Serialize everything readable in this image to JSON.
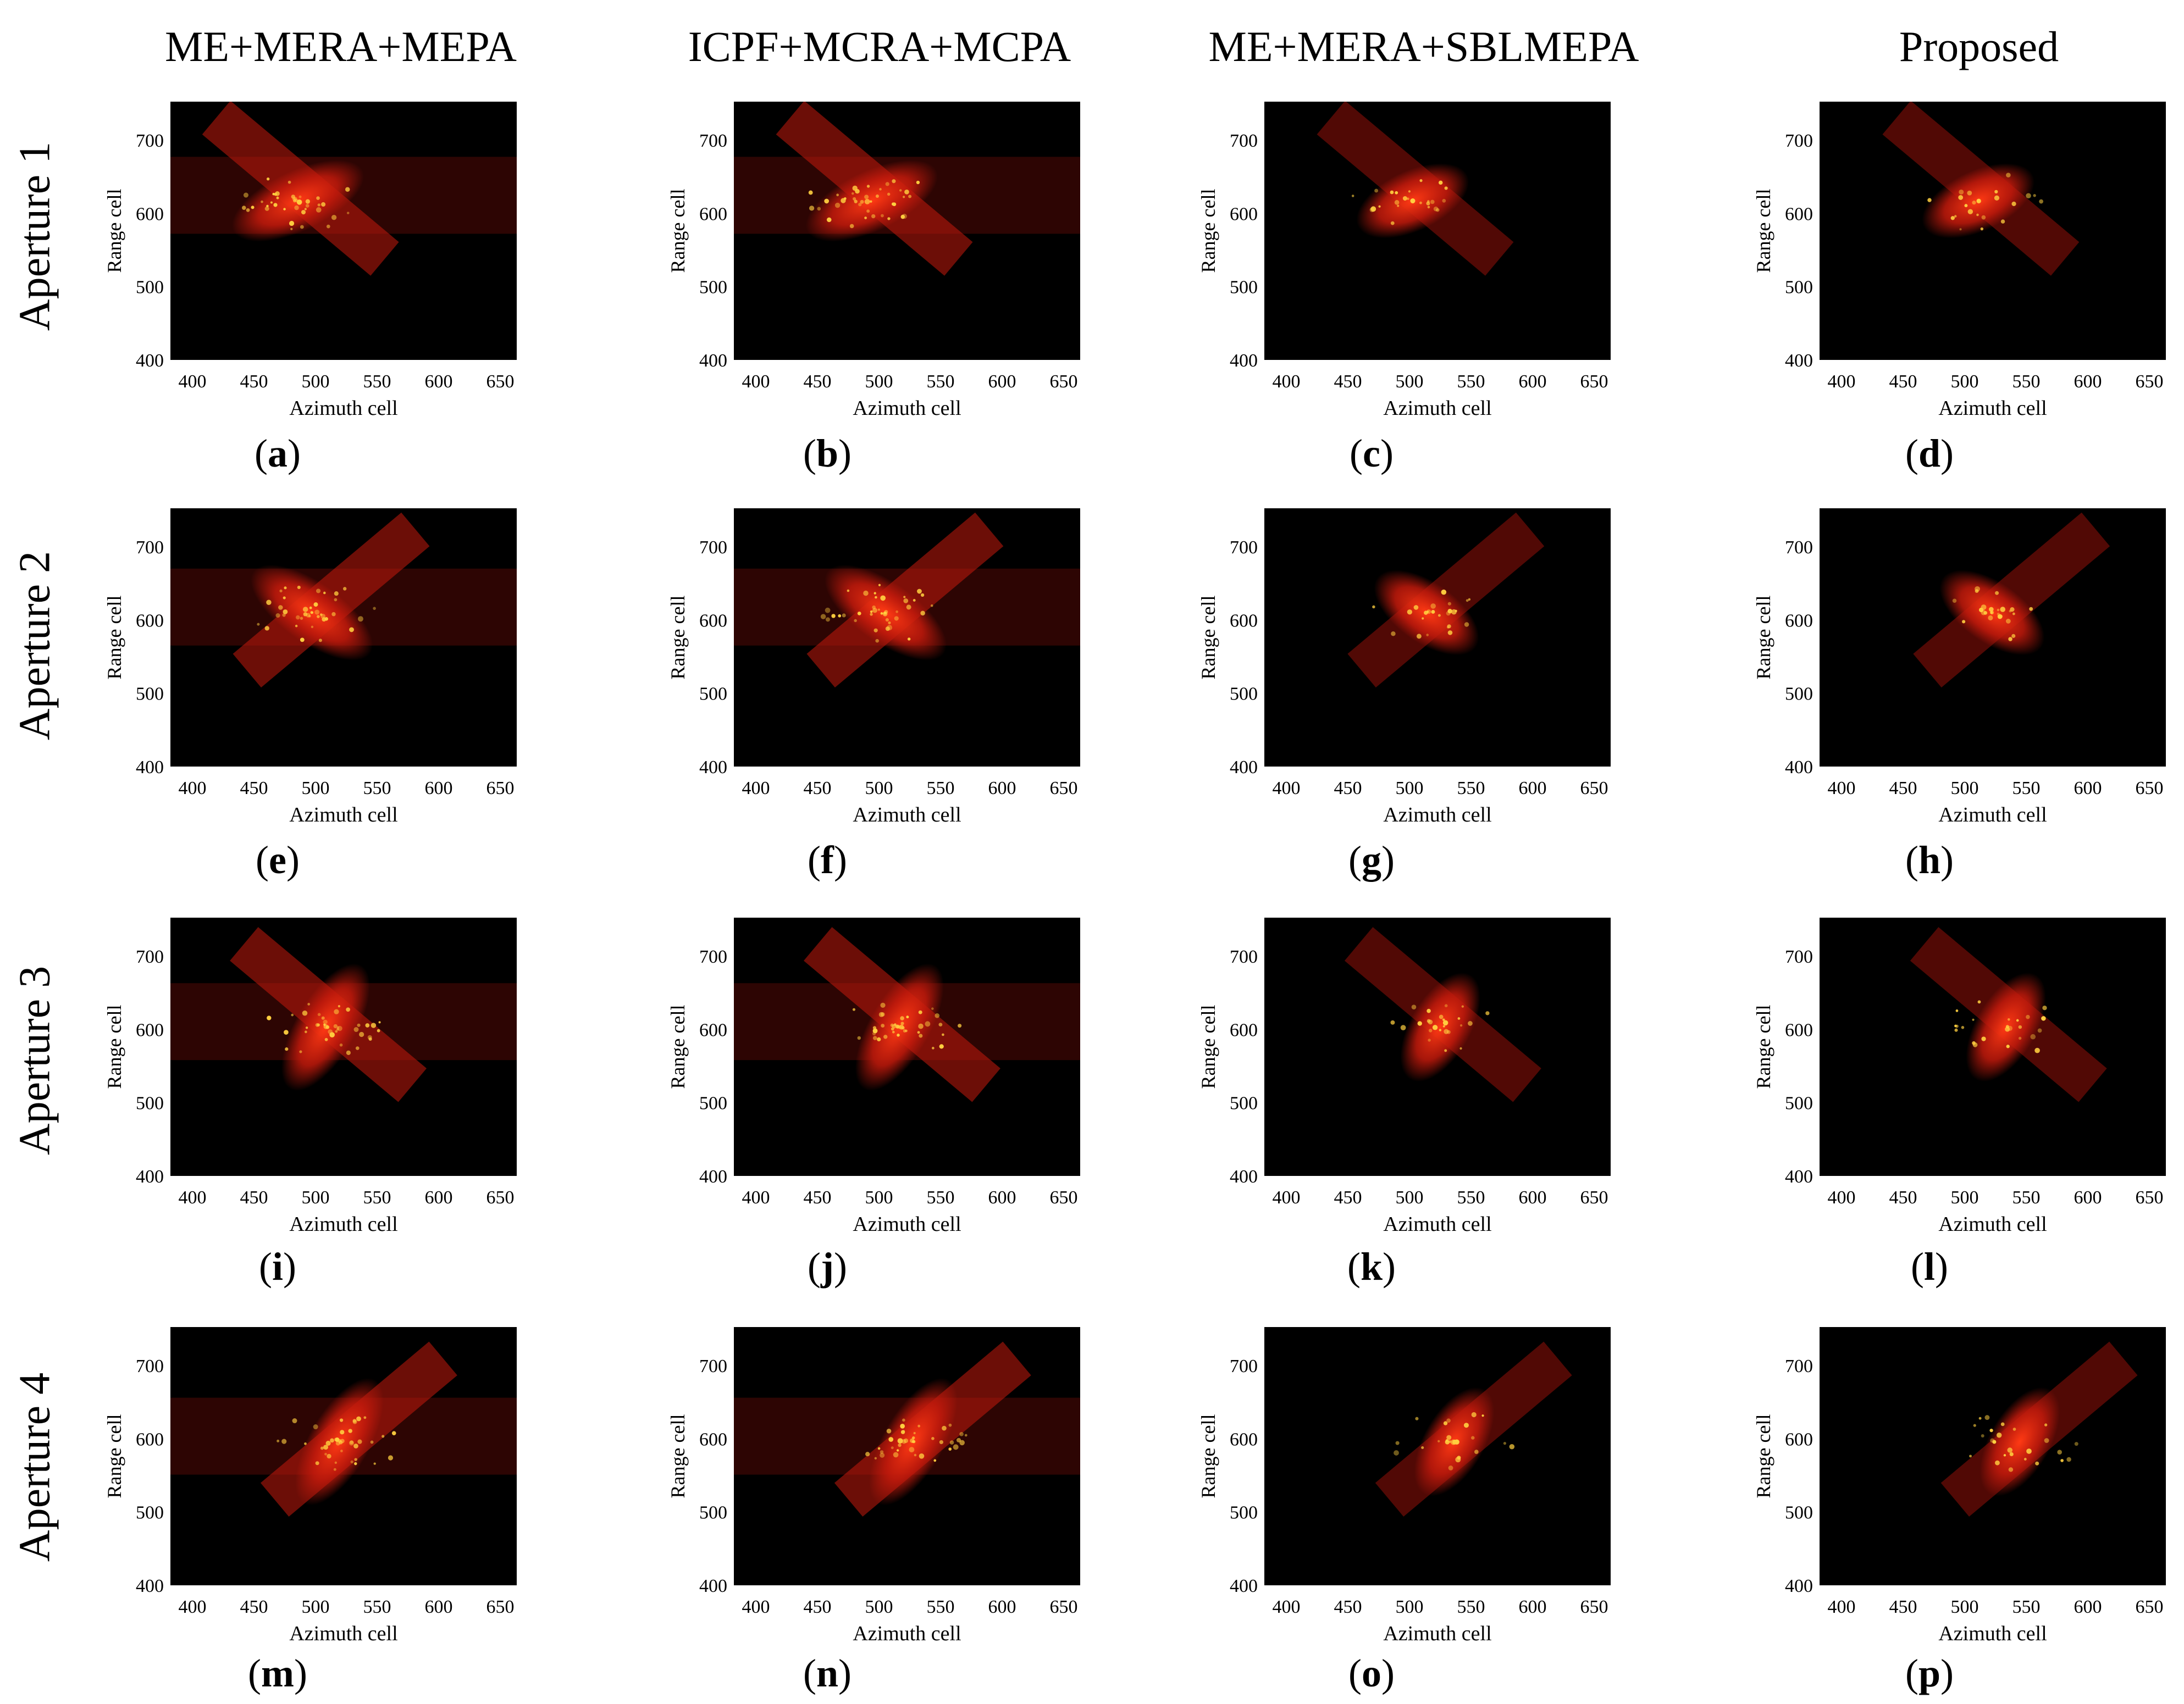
{
  "column_titles": [
    "ME+MERA+MEPA",
    "ICPF+MCRA+MCPA",
    "ME+MERA+SBLMEPA",
    "Proposed"
  ],
  "row_titles": [
    "Aperture 1",
    "Aperture 2",
    "Aperture 3",
    "Aperture 4"
  ],
  "axes": {
    "xlabel": "Azimuth cell",
    "ylabel": "Range cell",
    "xticks": [
      "400",
      "450",
      "500",
      "550",
      "600",
      "650"
    ],
    "yticks": [
      "700",
      "600",
      "500",
      "400"
    ]
  },
  "panels": [
    {
      "label": "a",
      "row": 1,
      "column": 1,
      "method": "ME+MERA+MEPA"
    },
    {
      "label": "b",
      "row": 1,
      "column": 2,
      "method": "ICPF+MCRA+MCPA"
    },
    {
      "label": "c",
      "row": 1,
      "column": 3,
      "method": "ME+MERA+SBLMEPA"
    },
    {
      "label": "d",
      "row": 1,
      "column": 4,
      "method": "Proposed"
    },
    {
      "label": "e",
      "row": 2,
      "column": 1,
      "method": "ME+MERA+MEPA"
    },
    {
      "label": "f",
      "row": 2,
      "column": 2,
      "method": "ICPF+MCRA+MCPA"
    },
    {
      "label": "g",
      "row": 2,
      "column": 3,
      "method": "ME+MERA+SBLMEPA"
    },
    {
      "label": "h",
      "row": 2,
      "column": 4,
      "method": "Proposed"
    },
    {
      "label": "i",
      "row": 3,
      "column": 1,
      "method": "ME+MERA+MEPA"
    },
    {
      "label": "j",
      "row": 3,
      "column": 2,
      "method": "ICPF+MCRA+MCPA"
    },
    {
      "label": "k",
      "row": 3,
      "column": 3,
      "method": "ME+MERA+SBLMEPA"
    },
    {
      "label": "l",
      "row": 3,
      "column": 4,
      "method": "Proposed"
    },
    {
      "label": "m",
      "row": 4,
      "column": 1,
      "method": "ME+MERA+MEPA"
    },
    {
      "label": "n",
      "row": 4,
      "column": 2,
      "method": "ICPF+MCRA+MCPA"
    },
    {
      "label": "o",
      "row": 4,
      "column": 3,
      "method": "ME+MERA+SBLMEPA"
    },
    {
      "label": "p",
      "row": 4,
      "column": 4,
      "method": "Proposed"
    }
  ],
  "colors": {
    "background": "#000000",
    "hot": "#ff3a14",
    "mid": "#c41a0c",
    "dim": "#5a0a06",
    "spark": "#ffd040"
  }
}
